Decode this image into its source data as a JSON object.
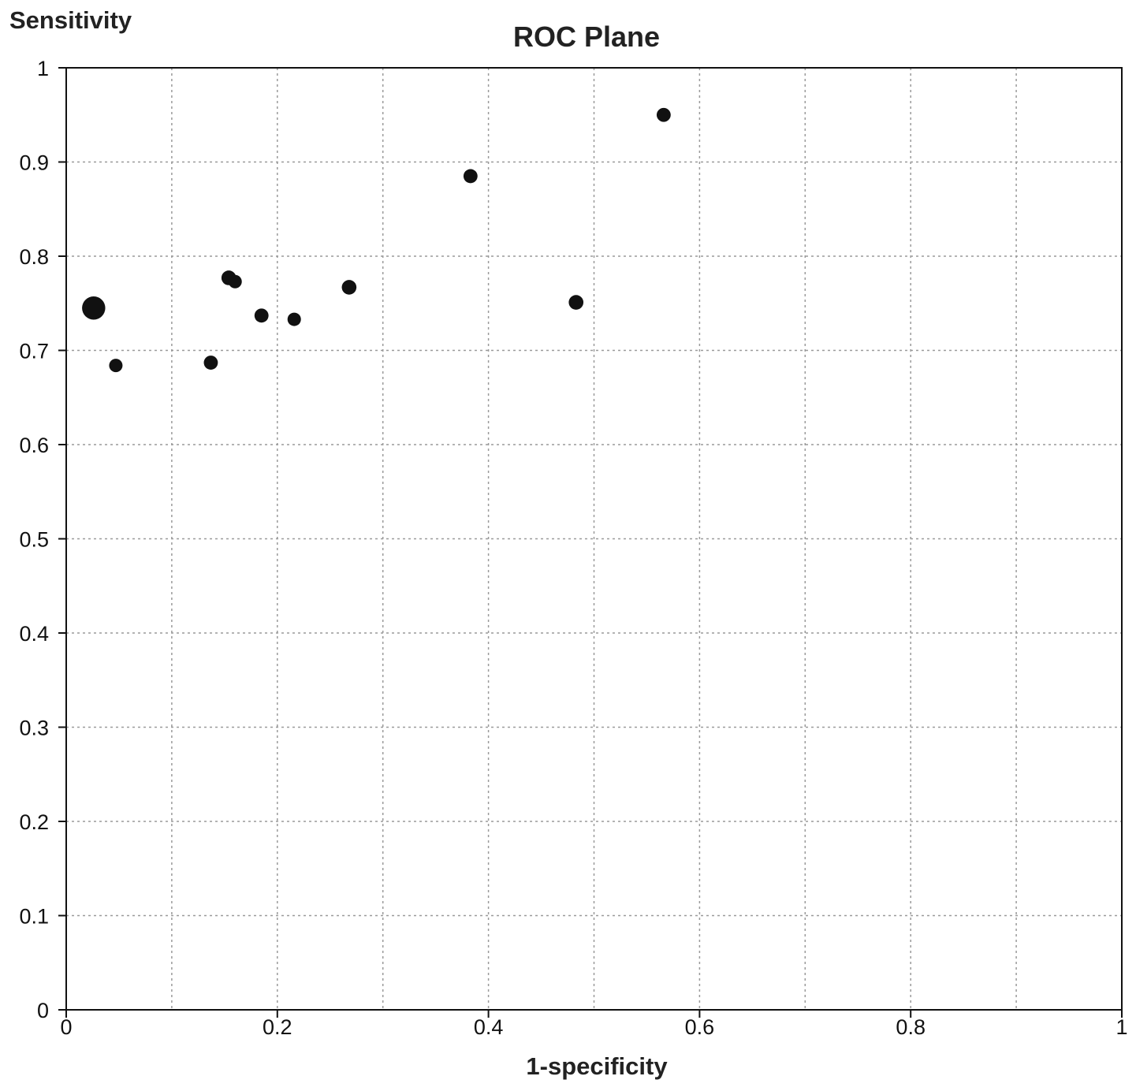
{
  "chart_data": {
    "type": "scatter",
    "title": "ROC Plane",
    "xlabel": "1-specificity",
    "ylabel": "Sensitivity",
    "xlim": [
      0,
      1
    ],
    "ylim": [
      0,
      1
    ],
    "xticks": [
      "0",
      "0.2",
      "0.4",
      "0.6",
      "0.8",
      "1"
    ],
    "xtick_values": [
      0,
      0.2,
      0.4,
      0.6,
      0.8,
      1
    ],
    "yticks": [
      "0",
      "0.1",
      "0.2",
      "0.3",
      "0.4",
      "0.5",
      "0.6",
      "0.7",
      "0.8",
      "0.9",
      "1"
    ],
    "ytick_values": [
      0,
      0.1,
      0.2,
      0.3,
      0.4,
      0.5,
      0.6,
      0.7,
      0.8,
      0.9,
      1
    ],
    "grid": true,
    "grid_step_x": 0.1,
    "grid_step_y": 0.1,
    "point_color": "#111111",
    "points": [
      {
        "x": 0.026,
        "y": 0.745,
        "weight": 3
      },
      {
        "x": 0.047,
        "y": 0.684,
        "weight": 1
      },
      {
        "x": 0.137,
        "y": 0.687,
        "weight": 1.1
      },
      {
        "x": 0.154,
        "y": 0.777,
        "weight": 1.2
      },
      {
        "x": 0.16,
        "y": 0.773,
        "weight": 1
      },
      {
        "x": 0.185,
        "y": 0.737,
        "weight": 1.1
      },
      {
        "x": 0.216,
        "y": 0.733,
        "weight": 1
      },
      {
        "x": 0.268,
        "y": 0.767,
        "weight": 1.2
      },
      {
        "x": 0.383,
        "y": 0.885,
        "weight": 1.1
      },
      {
        "x": 0.483,
        "y": 0.751,
        "weight": 1.2
      },
      {
        "x": 0.566,
        "y": 0.95,
        "weight": 1.1
      }
    ]
  }
}
